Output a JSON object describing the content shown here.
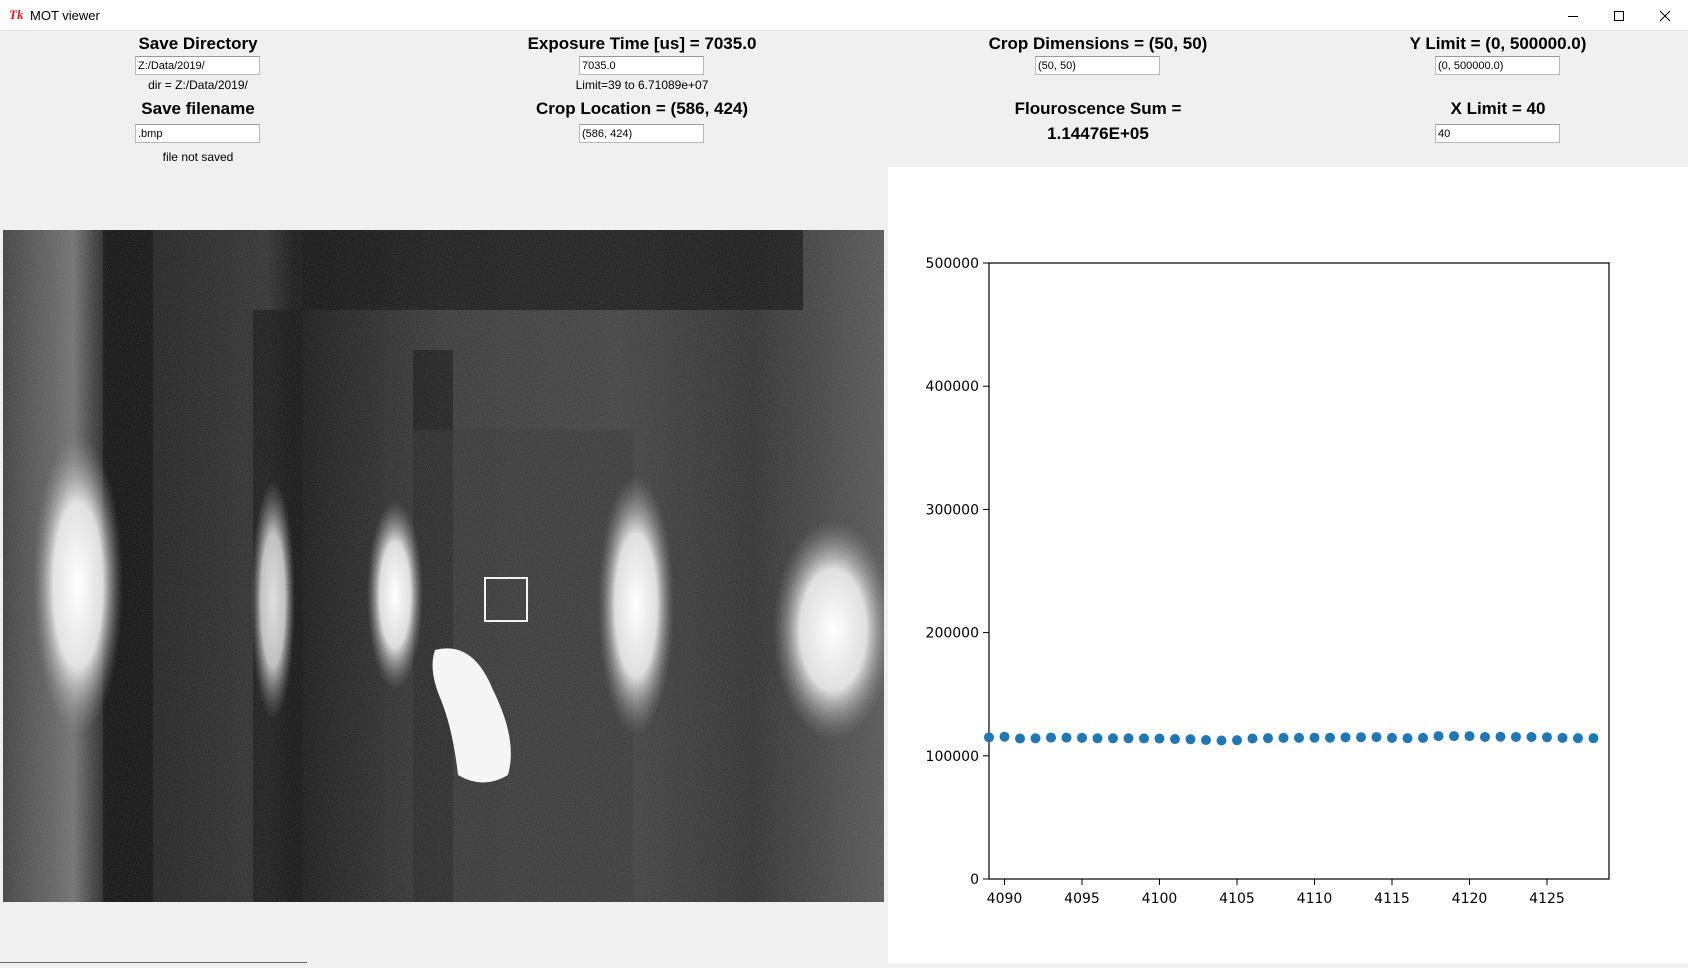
{
  "window": {
    "title": "MOT viewer",
    "icon": "tk-feather-icon"
  },
  "save_directory": {
    "heading": "Save Directory",
    "value": "Z:/Data/2019/",
    "status": "dir = Z:/Data/2019/"
  },
  "save_filename": {
    "heading": "Save filename",
    "value": ".bmp",
    "status": "file not saved"
  },
  "exposure": {
    "heading": "Exposure Time [us] = 7035.0",
    "value": "7035.0",
    "limit_text": "Limit=39 to 6.71089e+07"
  },
  "crop_location": {
    "heading": "Crop Location = (586, 424)",
    "value": "(586, 424)"
  },
  "crop_dimensions": {
    "heading": "Crop Dimensions = (50, 50)",
    "value": "(50, 50)"
  },
  "fluorescence": {
    "heading": "Flouroscence Sum =",
    "value": "1.14476E+05"
  },
  "y_limit": {
    "heading": "Y Limit = (0, 500000.0)",
    "value": "(0, 500000.0)"
  },
  "x_limit": {
    "heading": "X Limit = 40",
    "value": "40"
  },
  "chart_data": {
    "type": "scatter",
    "color": "#1f77b4",
    "xlim": [
      4089,
      4129
    ],
    "ylim": [
      0,
      500000
    ],
    "x_ticks": [
      "4090",
      "4095",
      "4100",
      "4105",
      "4110",
      "4115",
      "4120",
      "4125"
    ],
    "y_ticks": [
      "0",
      "100000",
      "200000",
      "300000",
      "400000",
      "500000"
    ],
    "x": [
      4089,
      4090,
      4091,
      4092,
      4093,
      4094,
      4095,
      4096,
      4097,
      4098,
      4099,
      4100,
      4101,
      4102,
      4103,
      4104,
      4105,
      4106,
      4107,
      4108,
      4109,
      4110,
      4111,
      4112,
      4113,
      4114,
      4115,
      4116,
      4117,
      4118,
      4119,
      4120,
      4121,
      4122,
      4123,
      4124,
      4125,
      4126,
      4127,
      4128
    ],
    "y": [
      115000,
      115500,
      114000,
      114200,
      114800,
      114800,
      114600,
      114200,
      114200,
      114200,
      114100,
      114000,
      113600,
      113400,
      112800,
      112400,
      112700,
      114000,
      114300,
      114500,
      114600,
      114700,
      114700,
      115000,
      115100,
      115200,
      114500,
      114300,
      114500,
      116000,
      116000,
      116000,
      115300,
      115500,
      115300,
      115300,
      115100,
      114600,
      114300,
      114300
    ]
  }
}
